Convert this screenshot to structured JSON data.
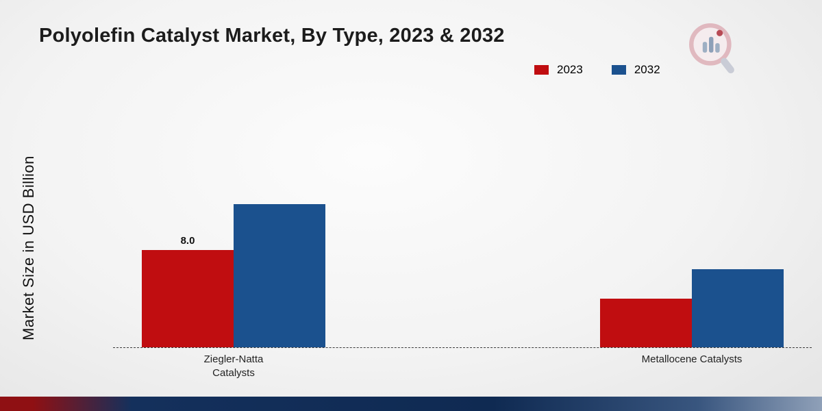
{
  "title": "Polyolefin Catalyst Market, By Type, 2023 & 2032",
  "y_axis_label": "Market Size in USD Billion",
  "legend": {
    "items": [
      {
        "label": "2023",
        "color": "#c00d10"
      },
      {
        "label": "2032",
        "color": "#1b518e"
      }
    ]
  },
  "chart_data": {
    "type": "bar",
    "title": "Polyolefin Catalyst Market, By Type, 2023 & 2032",
    "categories": [
      "Ziegler-Natta Catalysts",
      "Metallocene Catalysts"
    ],
    "series": [
      {
        "name": "2023",
        "color": "#c00d10",
        "values": [
          8.0,
          4.0
        ],
        "value_labels": [
          "8.0",
          ""
        ]
      },
      {
        "name": "2032",
        "color": "#1b518e",
        "values": [
          11.8,
          6.4
        ],
        "value_labels": [
          "",
          ""
        ]
      }
    ],
    "xlabel": "",
    "ylabel": "Market Size in USD Billion",
    "ylim": [
      0,
      13
    ],
    "grid": false,
    "legend_position": "top-right",
    "baseline_dashed": true
  },
  "colors": {
    "series_2023": "#c00d10",
    "series_2032": "#1b518e",
    "footer_navy": "#0f2a52",
    "footer_red": "#8f1013"
  },
  "icons": {
    "logo": "market-research-magnifier-chart-logo"
  }
}
